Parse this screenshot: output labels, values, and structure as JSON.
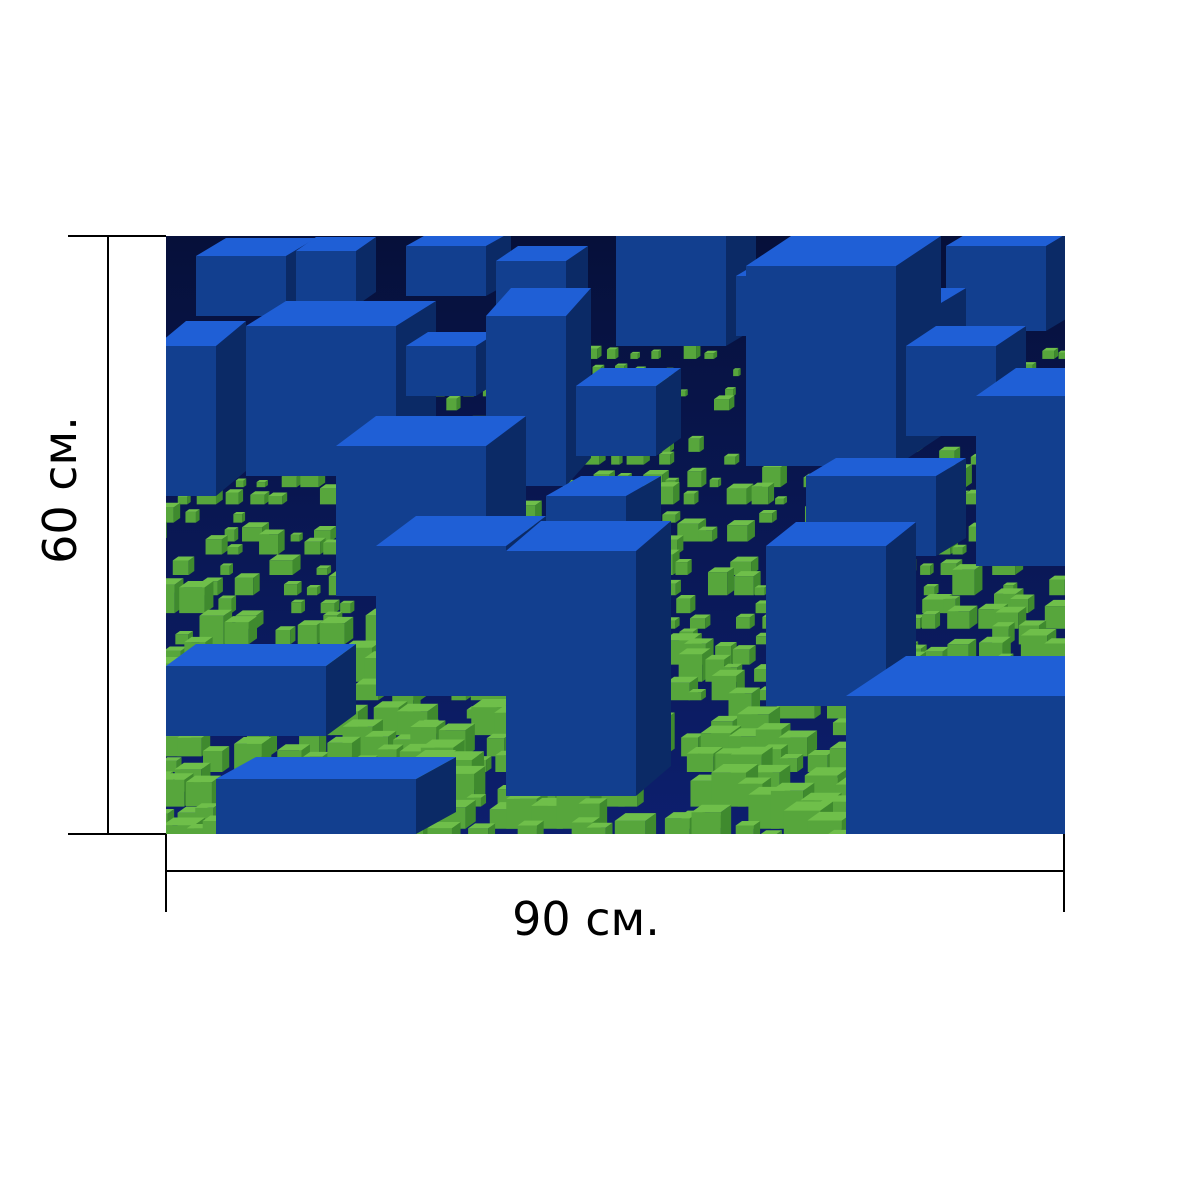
{
  "dimensions": {
    "width_label": "90 см.",
    "height_label": "60 см."
  },
  "artwork": {
    "subject": "blue-and-green-3d-cube-city",
    "colors": {
      "blue_top": "#1f5fd6",
      "blue_side": "#123f8f",
      "blue_dark": "#0b2a66",
      "green_top": "#6fbf4a",
      "green_side": "#3f8a2e",
      "ground": "#0d1a5a"
    }
  },
  "colors": {
    "line": "#000000",
    "background": "#ffffff"
  }
}
